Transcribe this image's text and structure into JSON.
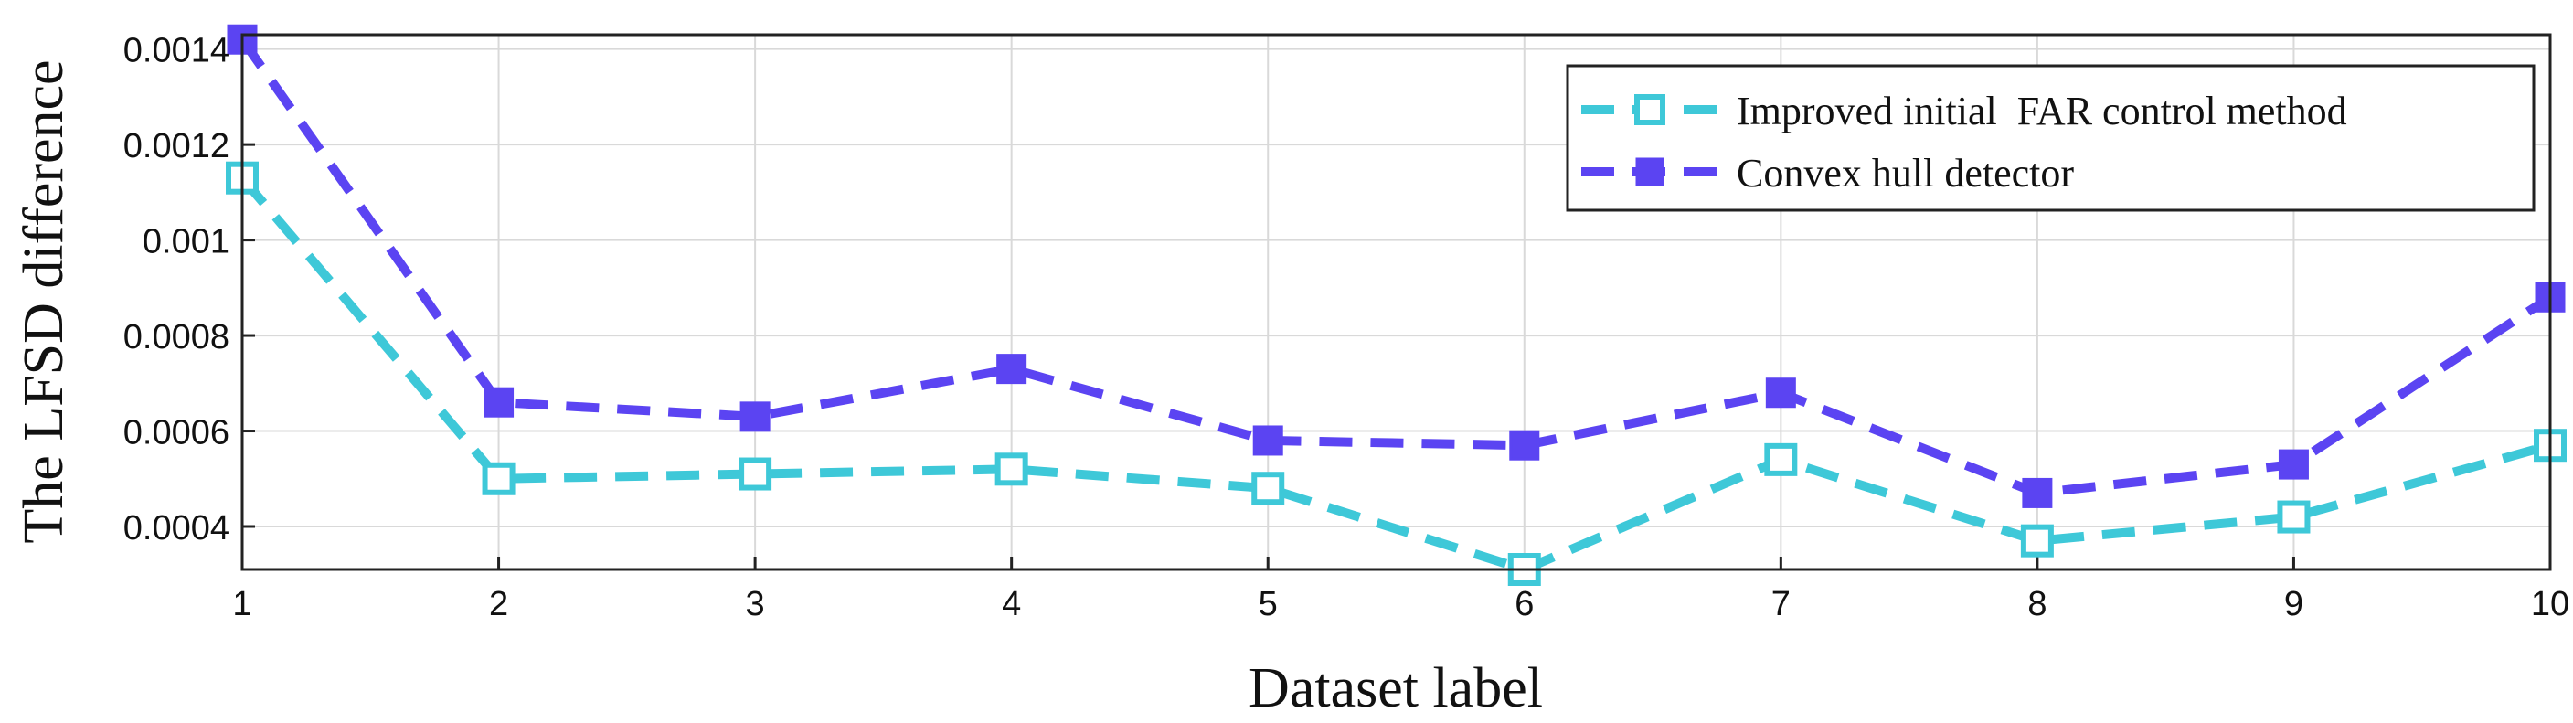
{
  "chart_data": {
    "type": "line",
    "title": "",
    "xlabel": "Dataset label",
    "ylabel": "The LFSD difference",
    "x": [
      1,
      2,
      3,
      4,
      5,
      6,
      7,
      8,
      9,
      10
    ],
    "xticks": [
      "1",
      "2",
      "3",
      "4",
      "5",
      "6",
      "7",
      "8",
      "9",
      "10"
    ],
    "yticks": [
      0.0004,
      0.0006,
      0.0008,
      0.001,
      0.0012,
      0.0014
    ],
    "ytick_labels": [
      "0.0004",
      "0.0006",
      "0.0008",
      "0.001",
      "0.0012",
      "0.0014"
    ],
    "xlim": [
      1,
      10
    ],
    "ylim": [
      0.00031,
      0.00143
    ],
    "grid": true,
    "legend_position": "top-right",
    "series": [
      {
        "name": "Improved initial  FAR control method",
        "color": "#3ec8d8",
        "marker": "open-square",
        "line_style": "dashed",
        "values": [
          0.00113,
          0.0005,
          0.00051,
          0.00052,
          0.00048,
          0.00031,
          0.00054,
          0.00037,
          0.00042,
          0.00057
        ]
      },
      {
        "name": "Convex hull detector",
        "color": "#5b44f2",
        "marker": "filled-square",
        "line_style": "dashed",
        "values": [
          0.00142,
          0.00066,
          0.00063,
          0.00073,
          0.00058,
          0.00057,
          0.00068,
          0.00047,
          0.00053,
          0.00088
        ]
      }
    ]
  }
}
